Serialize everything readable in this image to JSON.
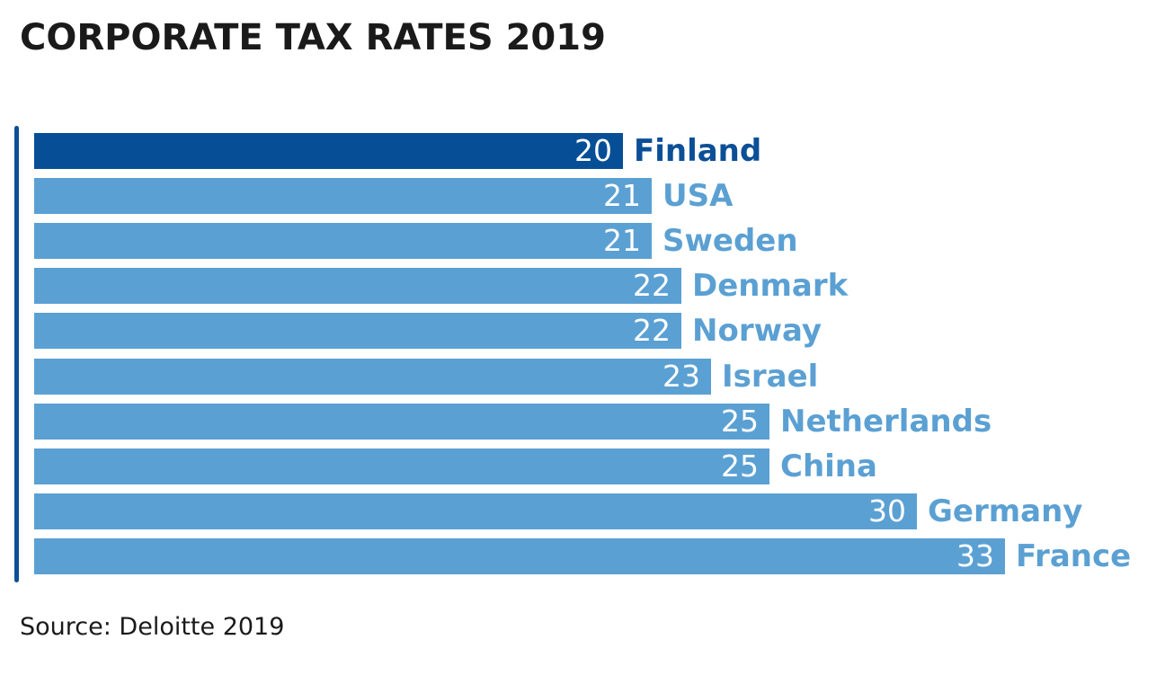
{
  "chart_data": {
    "type": "bar",
    "orientation": "horizontal",
    "title": "CORPORATE TAX RATES 2019",
    "source": "Source: Deloitte 2019",
    "categories": [
      "Finland",
      "USA",
      "Sweden",
      "Denmark",
      "Norway",
      "Israel",
      "Netherlands",
      "China",
      "Germany",
      "France"
    ],
    "values": [
      20,
      21,
      21,
      22,
      22,
      23,
      25,
      25,
      30,
      33
    ],
    "display_values": [
      "20",
      "21",
      "21",
      "22",
      "22",
      "23",
      "25",
      "25",
      "30",
      "33"
    ],
    "highlight": "Finland",
    "xlim": [
      0,
      33
    ],
    "grid": false,
    "legend": "none",
    "data_labels": "inside-end",
    "category_labels": "outside-end",
    "colors": {
      "bar": "#5ba0d3",
      "highlight": "#064f97",
      "axis": "#0b4f97",
      "text": "#1a1a1a"
    }
  }
}
